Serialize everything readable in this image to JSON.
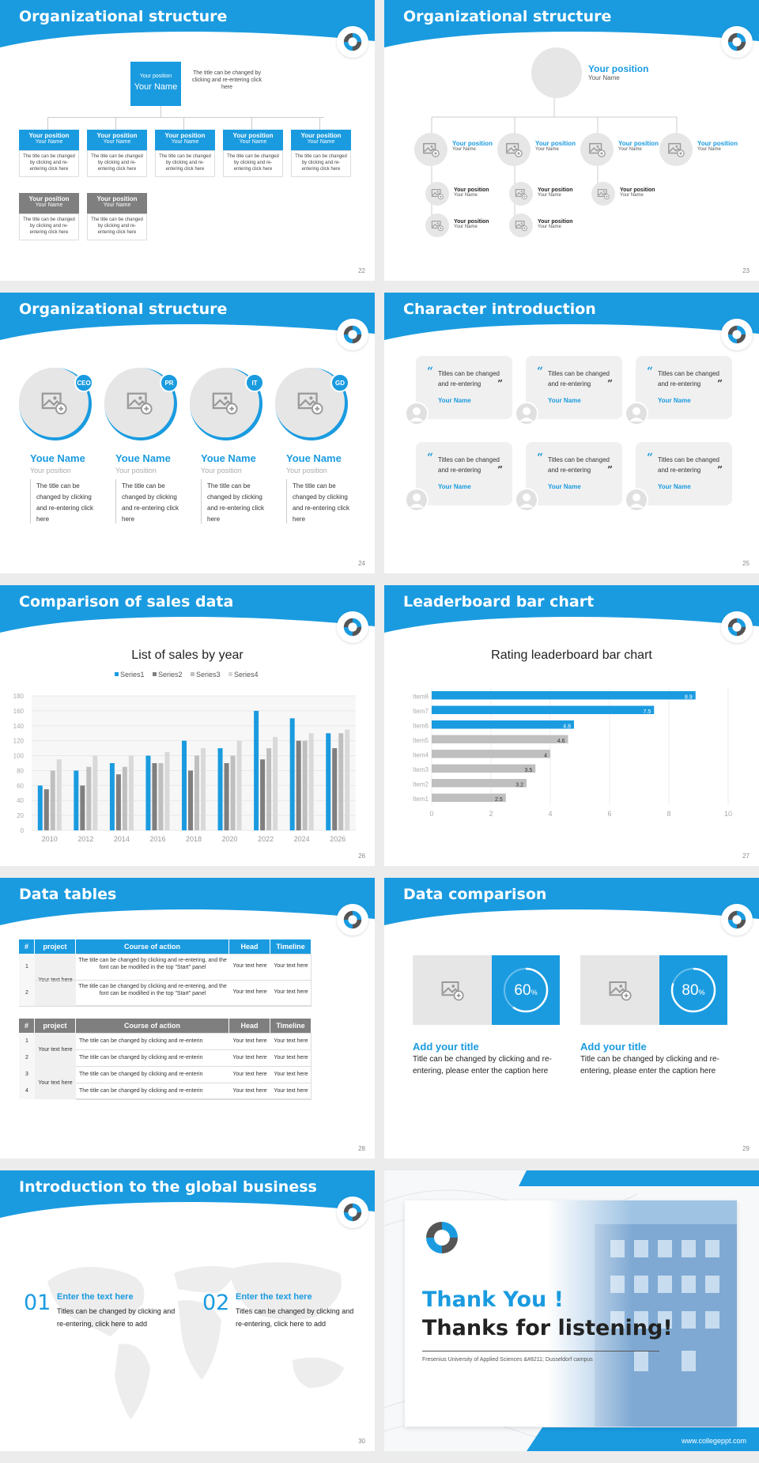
{
  "theme": {
    "accent": "#1a9be0",
    "gray": "#7f7f7f",
    "light": "#e6e6e6"
  },
  "slides": {
    "s22": {
      "title": "Organizational structure",
      "page": "22",
      "top": {
        "position": "Your position",
        "name": "Your Name",
        "desc": "The title can be changed by clicking and re-entering click here"
      },
      "blue_boxes": [
        {
          "position": "Your position",
          "name": "Your Name",
          "desc": "The title can be changed by clicking and re-entering click here"
        },
        {
          "position": "Your position",
          "name": "Your Name",
          "desc": "The title can be changed by clicking and re-entering click here"
        },
        {
          "position": "Your position",
          "name": "Your Name",
          "desc": "The title can be changed by clicking and re-entering click here"
        },
        {
          "position": "Your position",
          "name": "Your Name",
          "desc": "The title can be changed by clicking and re-entering click here"
        },
        {
          "position": "Your position",
          "name": "Your Name",
          "desc": "The title can be changed by clicking and re-entering click here"
        }
      ],
      "gray_boxes": [
        {
          "position": "Your position",
          "name": "Your Name",
          "desc": "The title can be changed by clicking and re-entering click here"
        },
        {
          "position": "Your position",
          "name": "Your Name",
          "desc": "The title can be changed by clicking and re-entering click here"
        }
      ]
    },
    "s23": {
      "title": "Organizational structure",
      "page": "23",
      "top": {
        "position": "Your position",
        "name": "Your Name"
      },
      "level2": [
        {
          "position": "Your position",
          "name": "Your Name"
        },
        {
          "position": "Your position",
          "name": "Your Name"
        },
        {
          "position": "Your position",
          "name": "Your Name"
        },
        {
          "position": "Your position",
          "name": "Your Name"
        }
      ],
      "level3": [
        {
          "position": "Your position",
          "name": "Your Name"
        },
        {
          "position": "Your position",
          "name": "Your Name"
        },
        {
          "position": "Your position",
          "name": "Your Name"
        },
        {
          "position": "Your position",
          "name": "Your Name"
        },
        {
          "position": "Your position",
          "name": "Your Name"
        }
      ]
    },
    "s24": {
      "title": "Organizational structure",
      "page": "24",
      "people": [
        {
          "badge": "CEO",
          "name": "Youe Name",
          "position": "Your position",
          "desc": "The title can be changed by clicking and re-entering click here"
        },
        {
          "badge": "PR",
          "name": "Youe Name",
          "position": "Your position",
          "desc": "The title can be changed by clicking and re-entering click here"
        },
        {
          "badge": "IT",
          "name": "Youe Name",
          "position": "Your position",
          "desc": "The title can be changed by clicking and re-entering click here"
        },
        {
          "badge": "GD",
          "name": "Youe Name",
          "position": "Your position",
          "desc": "The title can be changed by clicking and re-entering click here"
        }
      ]
    },
    "s25": {
      "title": "Character introduction",
      "page": "25",
      "quotes": [
        {
          "text": "Titles can be changed and re-entering",
          "name": "Your Name"
        },
        {
          "text": "Titles can be changed and re-entering",
          "name": "Your Name"
        },
        {
          "text": "Titles can be changed and re-entering",
          "name": "Your Name"
        },
        {
          "text": "Titles can be changed and re-entering",
          "name": "Your Name"
        },
        {
          "text": "Titles can be changed and re-entering",
          "name": "Your Name"
        },
        {
          "text": "Titles can be changed and re-entering",
          "name": "Your Name"
        }
      ]
    },
    "s26": {
      "title": "Comparison of sales data",
      "page": "26"
    },
    "s27": {
      "title": "Leaderboard bar chart",
      "page": "27"
    },
    "s28": {
      "title": "Data tables",
      "page": "28",
      "t1_headers": [
        "#",
        "project",
        "Course of action",
        "Head",
        "Timeline"
      ],
      "t1_project": "Your text here",
      "t1_rows": [
        {
          "n": "1",
          "action": "The title can be changed by clicking and re-entering, and the font can be modified in the top \"Start\" panel",
          "head": "Your text here",
          "time": "Your text here"
        },
        {
          "n": "2",
          "action": "The title can be changed by clicking and re-entering, and the font can be modified in the top \"Start\" panel",
          "head": "Your text here",
          "time": "Your text here"
        }
      ],
      "t2_headers": [
        "#",
        "project",
        "Course of action",
        "Head",
        "Timeline"
      ],
      "t2_project_a": "Your text here",
      "t2_project_b": "Your text here",
      "t2_rows": [
        {
          "n": "1",
          "action": "The title can be changed by clicking and re-enterin",
          "head": "Your text here",
          "time": "Your text here"
        },
        {
          "n": "2",
          "action": "The title can be changed by clicking and re-enterin",
          "head": "Your text here",
          "time": "Your text here"
        },
        {
          "n": "3",
          "action": "The title can be changed by clicking and re-enterin",
          "head": "Your text here",
          "time": "Your text here"
        },
        {
          "n": "4",
          "action": "The title can be changed by clicking and re-enterin",
          "head": "Your text here",
          "time": "Your text here"
        }
      ]
    },
    "s29": {
      "title": "Data comparison",
      "page": "29",
      "cards": [
        {
          "value": "60",
          "unit": "%",
          "progress": 0.6,
          "title": "Add your title",
          "desc": "Title can be changed by clicking and re-entering, please enter the caption here"
        },
        {
          "value": "80",
          "unit": "%",
          "progress": 0.8,
          "title": "Add your title",
          "desc": "Title can be changed by clicking and re-entering, please enter the caption here"
        }
      ]
    },
    "s30": {
      "title": "Introduction to the global business",
      "page": "30",
      "items": [
        {
          "num": "01",
          "title": "Enter the text here",
          "desc": "Titles can be changed by clicking and re-entering, click here to add"
        },
        {
          "num": "02",
          "title": "Enter the text here",
          "desc": "Titles can be changed by clicking and re-entering, click here to add"
        }
      ]
    },
    "s31": {
      "thank": "Thank You !",
      "thanks": "Thanks for listening!",
      "caption": "Fresenius University of Applied Sciences &#8211; Dusseldorf campus",
      "url": "www.collegeppt.com"
    }
  },
  "chart_data": [
    {
      "type": "bar",
      "title": "List of sales by year",
      "categories": [
        "2010",
        "2012",
        "2014",
        "2016",
        "2018",
        "2020",
        "2022",
        "2024",
        "2026"
      ],
      "series": [
        {
          "name": "Series1",
          "color": "#1a9be0",
          "values": [
            60,
            80,
            90,
            100,
            120,
            110,
            160,
            150,
            130
          ]
        },
        {
          "name": "Series2",
          "color": "#7f7f7f",
          "values": [
            55,
            60,
            75,
            90,
            80,
            90,
            95,
            120,
            110
          ]
        },
        {
          "name": "Series3",
          "color": "#bfbfbf",
          "values": [
            80,
            85,
            85,
            90,
            100,
            100,
            110,
            120,
            130
          ]
        },
        {
          "name": "Series4",
          "color": "#d9d9d9",
          "values": [
            95,
            100,
            100,
            105,
            110,
            120,
            125,
            130,
            135
          ]
        }
      ],
      "ylim": [
        0,
        180
      ],
      "yticks": [
        "0",
        "20",
        "40",
        "60",
        "80",
        "100",
        "120",
        "140",
        "160",
        "180"
      ],
      "legend": "top"
    },
    {
      "type": "bar",
      "orientation": "horizontal",
      "title": "Rating leaderboard bar chart",
      "categories": [
        "Item8",
        "Item7",
        "Item6",
        "Item5",
        "Item4",
        "Item3",
        "Item2",
        "Item1"
      ],
      "values": [
        8.9,
        7.5,
        4.8,
        4.6,
        4,
        3.5,
        3.2,
        2.5
      ],
      "labels": [
        "8.9",
        "7.5",
        "4.8",
        "4.6",
        "4",
        "3.5",
        "3.2",
        "2.5"
      ],
      "colors": [
        "#1a9be0",
        "#1a9be0",
        "#1a9be0",
        "#bfbfbf",
        "#bfbfbf",
        "#bfbfbf",
        "#bfbfbf",
        "#bfbfbf"
      ],
      "xlim": [
        0,
        10
      ],
      "xticks": [
        "0",
        "2",
        "4",
        "6",
        "8",
        "10"
      ]
    }
  ]
}
